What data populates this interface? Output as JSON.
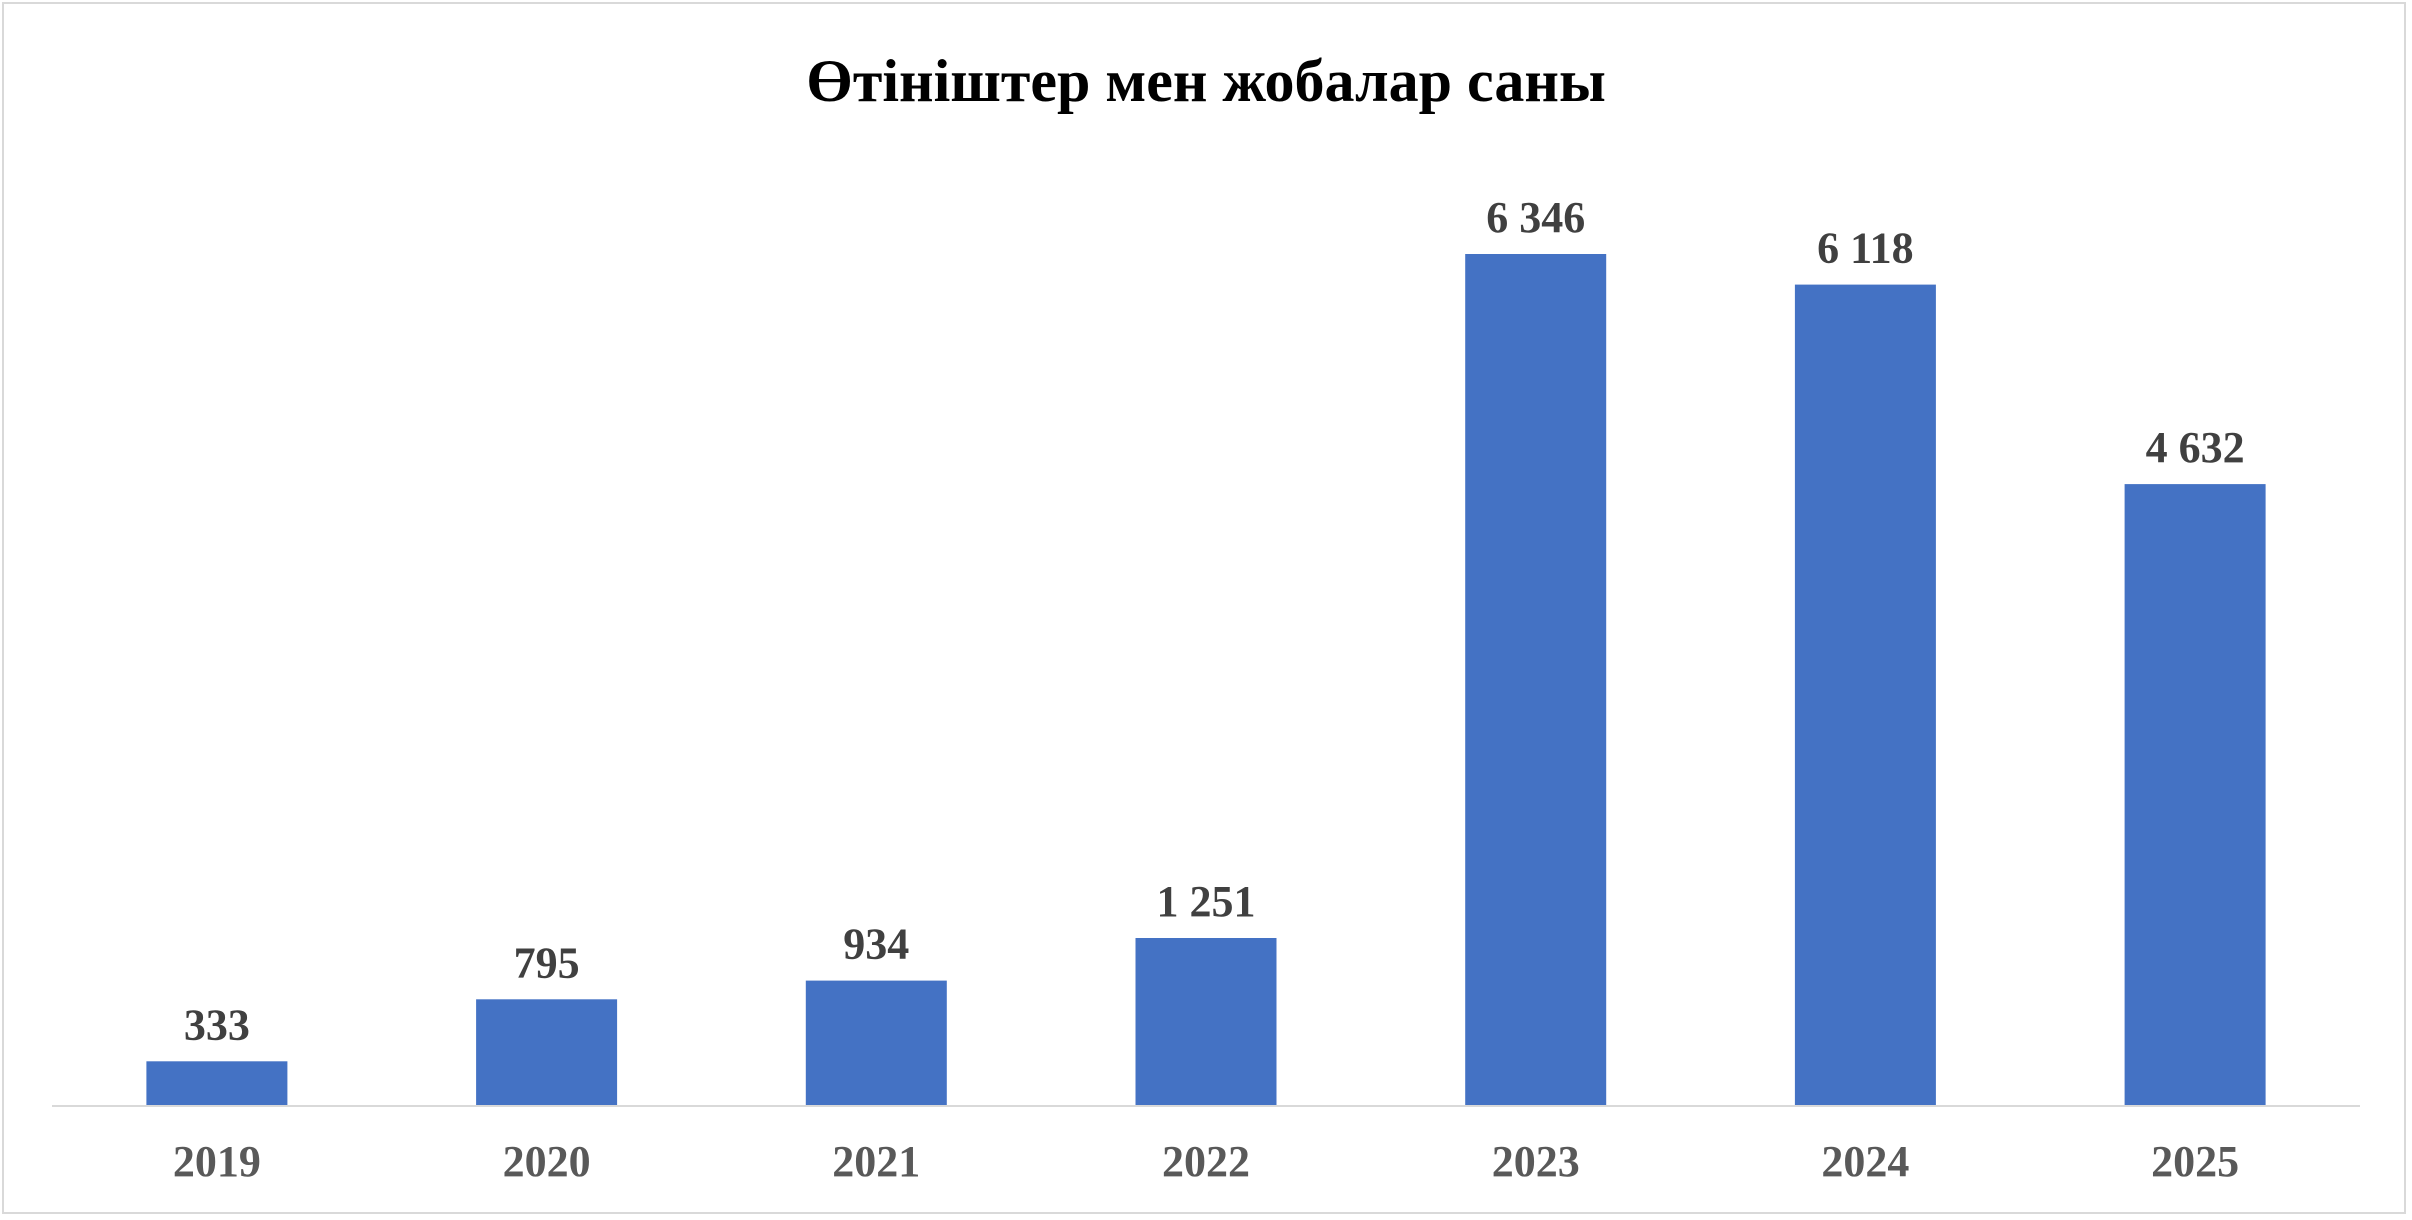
{
  "chart_data": {
    "type": "bar",
    "title": "Өтініштер мен жобалар саны",
    "xlabel": "",
    "ylabel": "",
    "categories": [
      "2019",
      "2020",
      "2021",
      "2022",
      "2023",
      "2024",
      "2025"
    ],
    "series": [
      {
        "values": [
          333,
          795,
          934,
          1251,
          6346,
          6118,
          4632
        ],
        "data_labels": [
          "333",
          "795",
          "934",
          "1 251",
          "6 346",
          "6 118",
          "4 632"
        ],
        "color": "#4472C4"
      }
    ],
    "ylim": [
      0,
      7000
    ],
    "grid": false,
    "legend": "none"
  }
}
